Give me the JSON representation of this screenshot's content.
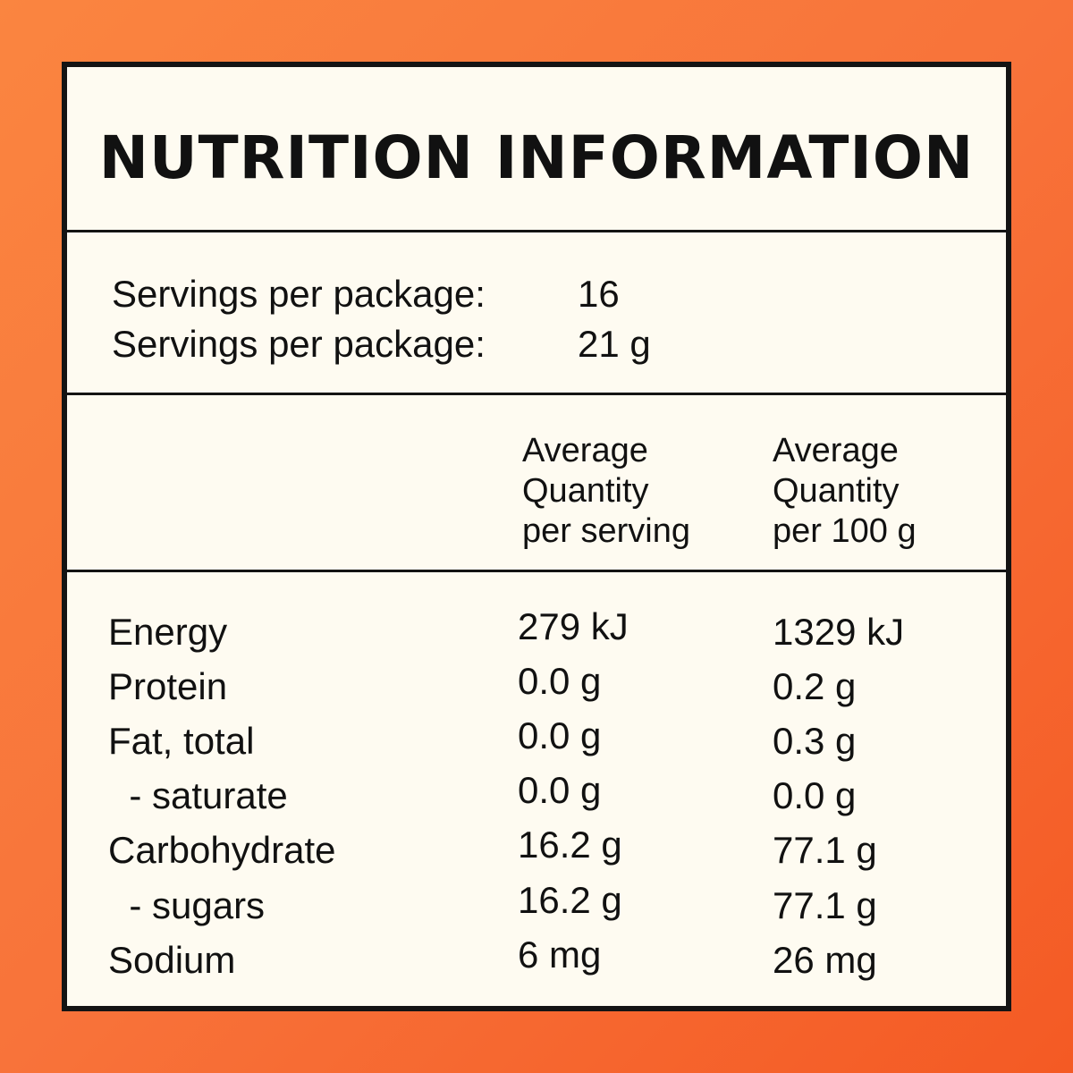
{
  "title": "NUTRITION INFORMATION",
  "servings": [
    {
      "label": "Servings per package:",
      "value": "16"
    },
    {
      "label": "Servings per package:",
      "value": "21 g"
    }
  ],
  "columns": {
    "per_serving": [
      "Average",
      "Quantity",
      "per serving"
    ],
    "per_100g": [
      "Average",
      "Quantity",
      "per 100 g"
    ]
  },
  "rows": [
    {
      "name": "Energy",
      "per_serving": "279 kJ",
      "per_100g": "1329 kJ"
    },
    {
      "name": "Protein",
      "per_serving": "0.0 g",
      "per_100g": "0.2 g"
    },
    {
      "name": "Fat, total",
      "per_serving": "0.0 g",
      "per_100g": "0.3 g"
    },
    {
      "name": "  - saturate",
      "per_serving": "0.0 g",
      "per_100g": "0.0 g"
    },
    {
      "name": "Carbohydrate",
      "per_serving": "16.2 g",
      "per_100g": "77.1 g"
    },
    {
      "name": "  - sugars",
      "per_serving": "16.2 g",
      "per_100g": "77.1 g"
    },
    {
      "name": "Sodium",
      "per_serving": "6 mg",
      "per_100g": "26 mg"
    }
  ],
  "colors": {
    "background_start": "#fa8540",
    "background_end": "#f45a24",
    "panel": "#fefbf1",
    "ink": "#141414"
  }
}
